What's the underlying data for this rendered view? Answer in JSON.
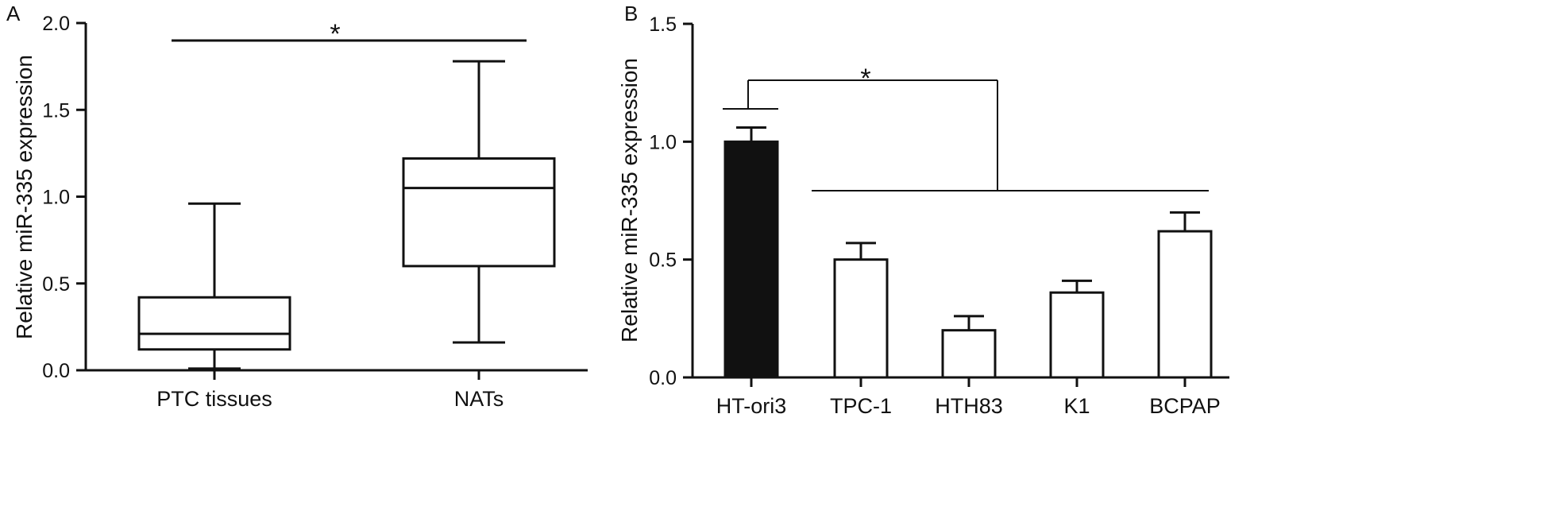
{
  "colors": {
    "ink": "#111111",
    "highlight_bar": "#111111",
    "bar_fill": "#ffffff",
    "background": "#ffffff"
  },
  "chart_data": [
    {
      "panel": "A",
      "type": "box",
      "ylabel": "Relative miR-335 expression",
      "ylim": [
        0,
        2.0
      ],
      "yticks": [
        "0.0",
        "0.5",
        "1.0",
        "1.5",
        "2.0"
      ],
      "categories": [
        "PTC tissues",
        "NATs"
      ],
      "boxes": [
        {
          "min": 0.01,
          "q1": 0.12,
          "median": 0.21,
          "q3": 0.42,
          "max": 0.96
        },
        {
          "min": 0.16,
          "q1": 0.6,
          "median": 1.05,
          "q3": 1.22,
          "max": 1.78
        }
      ],
      "significance": "*",
      "grid": false
    },
    {
      "panel": "B",
      "type": "bar",
      "ylabel": "Relative miR-335 expression",
      "ylim": [
        0,
        1.5
      ],
      "yticks": [
        "0.0",
        "0.5",
        "1.0",
        "1.5"
      ],
      "categories": [
        "HT-ori3",
        "TPC-1",
        "HTH83",
        "K1",
        "BCPAP"
      ],
      "values": [
        1.0,
        0.5,
        0.2,
        0.36,
        0.62
      ],
      "errors": [
        0.06,
        0.07,
        0.06,
        0.05,
        0.08
      ],
      "significance": "*",
      "grid": false
    }
  ]
}
